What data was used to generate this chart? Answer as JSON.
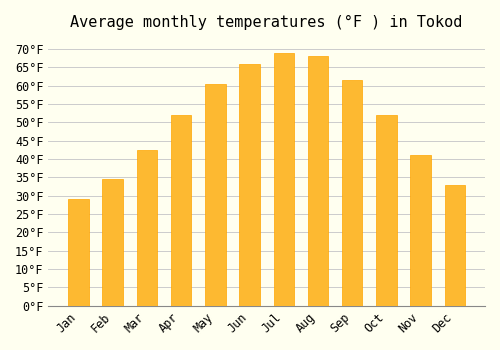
{
  "title": "Average monthly temperatures (°F ) in Tokod",
  "months": [
    "Jan",
    "Feb",
    "Mar",
    "Apr",
    "May",
    "Jun",
    "Jul",
    "Aug",
    "Sep",
    "Oct",
    "Nov",
    "Dec"
  ],
  "values": [
    29,
    34.5,
    42.5,
    52,
    60.5,
    66,
    69,
    68,
    61.5,
    52,
    41,
    33
  ],
  "bar_color": "#FDB931",
  "bar_edge_color": "#FFA500",
  "background_color": "#FFFFF0",
  "grid_color": "#CCCCCC",
  "ylim": [
    0,
    73
  ],
  "yticks": [
    0,
    5,
    10,
    15,
    20,
    25,
    30,
    35,
    40,
    45,
    50,
    55,
    60,
    65,
    70
  ],
  "ylabel_suffix": "°F",
  "title_fontsize": 11,
  "tick_fontsize": 8.5,
  "font_family": "monospace"
}
